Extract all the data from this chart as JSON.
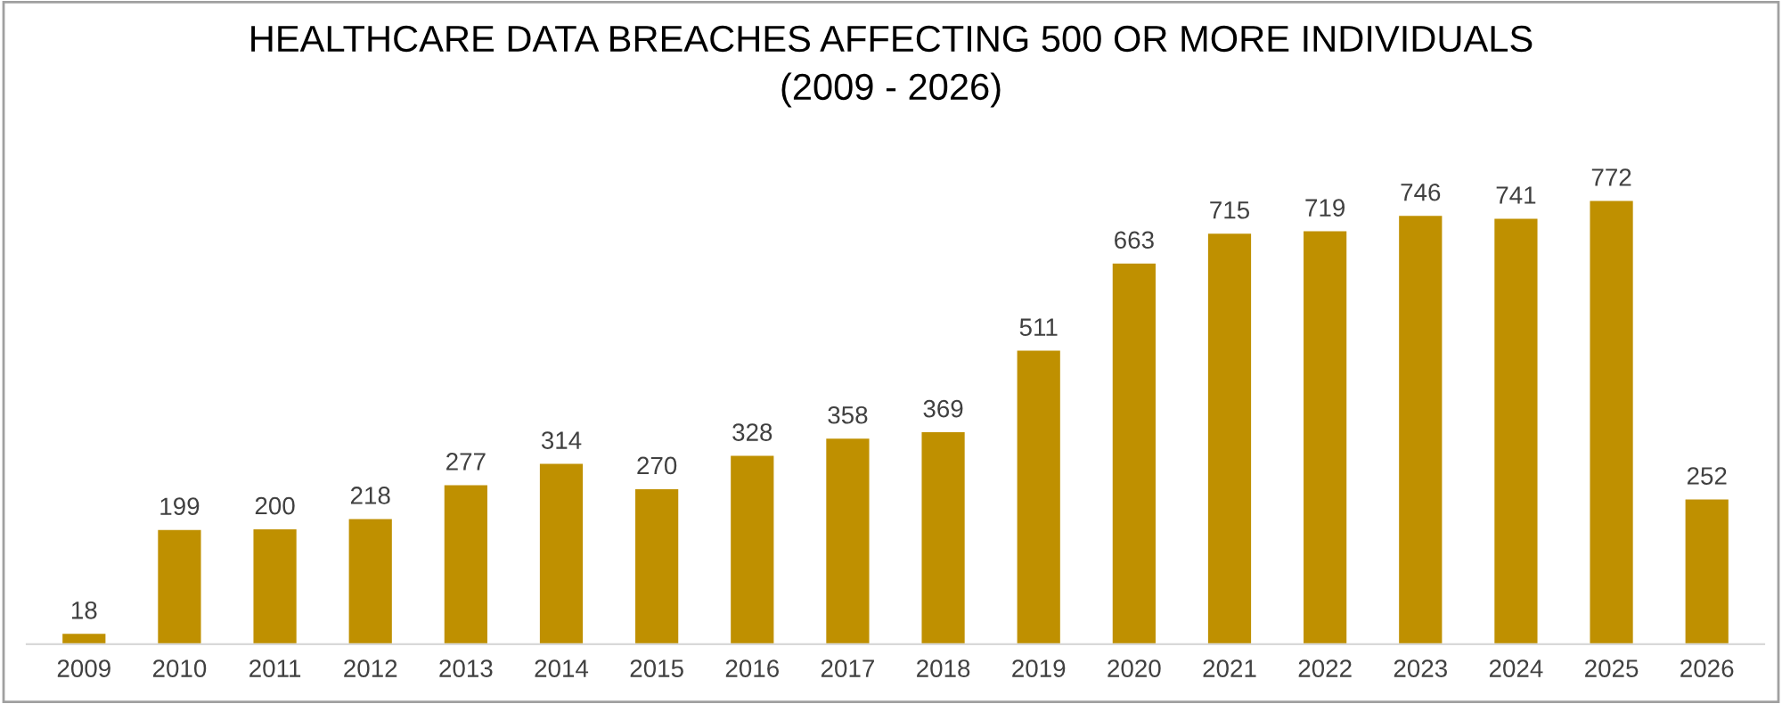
{
  "chart_data": {
    "type": "bar",
    "title": "HEALTHCARE DATA BREACHES AFFECTING 500 OR MORE INDIVIDUALS\n(2009 - 2026)",
    "categories": [
      "2009",
      "2010",
      "2011",
      "2012",
      "2013",
      "2014",
      "2015",
      "2016",
      "2017",
      "2018",
      "2019",
      "2020",
      "2021",
      "2022",
      "2023",
      "2024",
      "2025",
      "2026"
    ],
    "values": [
      18,
      199,
      200,
      218,
      277,
      314,
      270,
      328,
      358,
      369,
      511,
      663,
      715,
      719,
      746,
      741,
      772,
      252
    ],
    "color": "#bf9000",
    "data_labels": true,
    "grid": false,
    "legend": false
  }
}
